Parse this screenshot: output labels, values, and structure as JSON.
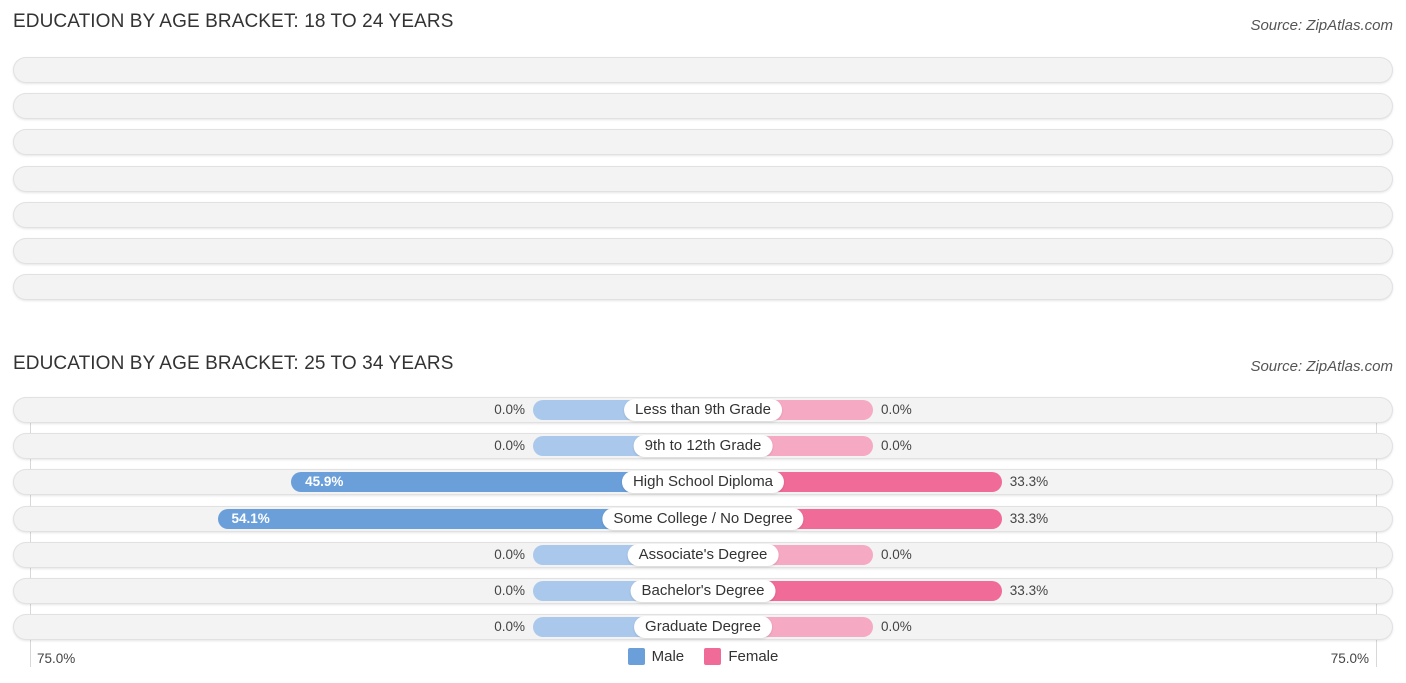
{
  "colors": {
    "male_strong": "#6a9fd9",
    "male_light": "#a9c8ec",
    "female_strong": "#f06b97",
    "female_light": "#f6a9c2"
  },
  "chart_data": [
    {
      "type": "bar",
      "title": "EDUCATION BY AGE BRACKET: 18 TO 24 YEARS",
      "source": "Source: ZipAtlas.com",
      "categories": [
        "",
        "",
        "",
        "",
        "",
        "",
        ""
      ],
      "series": [],
      "rows": 7
    },
    {
      "type": "bar",
      "title": "EDUCATION BY AGE BRACKET: 25 TO 34 YEARS",
      "source": "Source: ZipAtlas.com",
      "categories": [
        "Less than 9th Grade",
        "9th to 12th Grade",
        "High School Diploma",
        "Some College / No Degree",
        "Associate's Degree",
        "Bachelor's Degree",
        "Graduate Degree"
      ],
      "series": [
        {
          "name": "Male",
          "values": [
            0.0,
            0.0,
            45.9,
            54.1,
            0.0,
            0.0,
            0.0
          ],
          "labels": [
            "0.0%",
            "0.0%",
            "45.9%",
            "54.1%",
            "0.0%",
            "0.0%",
            "0.0%"
          ]
        },
        {
          "name": "Female",
          "values": [
            0.0,
            0.0,
            33.3,
            33.3,
            0.0,
            33.3,
            0.0
          ],
          "labels": [
            "0.0%",
            "0.0%",
            "33.3%",
            "33.3%",
            "0.0%",
            "33.3%",
            "0.0%"
          ]
        }
      ],
      "xlim": [
        -75,
        75
      ],
      "axis_labels": {
        "left": "75.0%",
        "right": "75.0%"
      },
      "legend": [
        {
          "name": "Male"
        },
        {
          "name": "Female"
        }
      ],
      "legend_position": "bottom-center"
    }
  ]
}
